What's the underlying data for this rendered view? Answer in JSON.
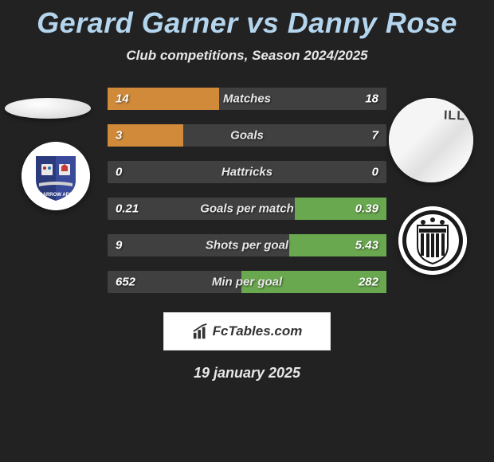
{
  "title": "Gerard Garner vs Danny Rose",
  "subtitle": "Club competitions, Season 2024/2025",
  "date": "19 january 2025",
  "attribution": "FcTables.com",
  "player2_jersey_text": "ILL",
  "colors": {
    "background": "#222222",
    "title": "#b4d5ee",
    "text": "#e8e8e8",
    "bar_bg": "#404040",
    "bar_left": "#d08a3a",
    "bar_right": "#6aa84f"
  },
  "chart": {
    "type": "comparison-bars",
    "rows": [
      {
        "label": "Matches",
        "left": "14",
        "right": "18",
        "left_pct": 40,
        "right_pct": 0
      },
      {
        "label": "Goals",
        "left": "3",
        "right": "7",
        "left_pct": 27,
        "right_pct": 0
      },
      {
        "label": "Hattricks",
        "left": "0",
        "right": "0",
        "left_pct": 0,
        "right_pct": 0
      },
      {
        "label": "Goals per match",
        "left": "0.21",
        "right": "0.39",
        "left_pct": 0,
        "right_pct": 33
      },
      {
        "label": "Shots per goal",
        "left": "9",
        "right": "5.43",
        "left_pct": 0,
        "right_pct": 35
      },
      {
        "label": "Min per goal",
        "left": "652",
        "right": "282",
        "left_pct": 0,
        "right_pct": 52
      }
    ]
  }
}
